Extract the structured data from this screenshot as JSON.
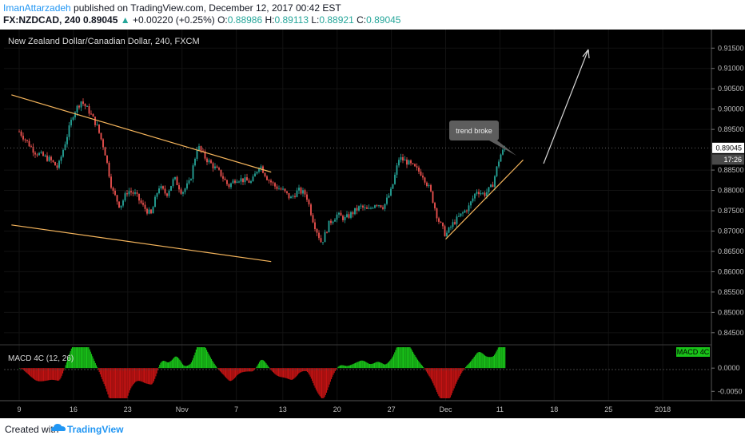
{
  "header": {
    "author": "ImanAttarzadeh",
    "published_text": " published on TradingView.com, December 12, 2017 00:42 EST",
    "symbol": "FX:NZDCAD, 240",
    "last": "0.89045",
    "change": "+0.00220 (+0.25%)",
    "o_label": "O:",
    "o": "0.88986",
    "h_label": "H:",
    "h": "0.89113",
    "l_label": "L:",
    "l": "0.88921",
    "c_label": "C:",
    "c": "0.89045"
  },
  "chart_title": "New Zealand Dollar/Canadian Dollar, 240, FXCM",
  "annotation": "trend broke",
  "footer": {
    "created_with": "Created with",
    "brand": "TradingView"
  },
  "colors": {
    "up": "#26a69a",
    "down": "#ef5350",
    "trendline": "#f5b55c",
    "bg": "#000000",
    "macd_up": "#19c319",
    "macd_down": "#c41313"
  },
  "chart_data": {
    "type": "candlestick",
    "ylim": [
      0.843,
      0.918
    ],
    "price_ticks": [
      "0.91500",
      "0.91000",
      "0.90500",
      "0.90000",
      "0.89500",
      "0.88500",
      "0.88000",
      "0.87500",
      "0.87000",
      "0.86500",
      "0.86000",
      "0.85500",
      "0.85000",
      "0.84500"
    ],
    "current_price": "0.89045",
    "countdown": "17:26",
    "x_ticks": [
      "9",
      "16",
      "23",
      "Nov",
      "7",
      "13",
      "20",
      "27",
      "Dec",
      "11",
      "18",
      "25",
      "2018"
    ],
    "price_path": [
      {
        "x": 9,
        "y": 0.8945
      },
      {
        "x": 11,
        "y": 0.8895
      },
      {
        "x": 13,
        "y": 0.8875
      },
      {
        "x": 14,
        "y": 0.8855
      },
      {
        "x": 16,
        "y": 0.899
      },
      {
        "x": 17,
        "y": 0.902
      },
      {
        "x": 18,
        "y": 0.8995
      },
      {
        "x": 19,
        "y": 0.896
      },
      {
        "x": 20,
        "y": 0.89
      },
      {
        "x": 21,
        "y": 0.88
      },
      {
        "x": 22,
        "y": 0.876
      },
      {
        "x": 23,
        "y": 0.88
      },
      {
        "x": 24,
        "y": 0.879
      },
      {
        "x": 25,
        "y": 0.876
      },
      {
        "x": 26,
        "y": 0.874
      },
      {
        "x": 27,
        "y": 0.881
      },
      {
        "x": 28,
        "y": 0.879
      },
      {
        "x": 29,
        "y": 0.883
      },
      {
        "x": 30,
        "y": 0.8795
      },
      {
        "x": 31,
        "y": 0.882
      },
      {
        "x": 32,
        "y": 0.891
      },
      {
        "x": 33,
        "y": 0.888
      },
      {
        "x": 34,
        "y": 0.886
      },
      {
        "x": 35,
        "y": 0.884
      },
      {
        "x": 36,
        "y": 0.881
      },
      {
        "x": 37,
        "y": 0.883
      },
      {
        "x": 38,
        "y": 0.8825
      },
      {
        "x": 39,
        "y": 0.882
      },
      {
        "x": 40,
        "y": 0.8865
      },
      {
        "x": 41,
        "y": 0.883
      },
      {
        "x": 42,
        "y": 0.881
      },
      {
        "x": 43,
        "y": 0.88
      },
      {
        "x": 44,
        "y": 0.878
      },
      {
        "x": 45,
        "y": 0.88
      },
      {
        "x": 46,
        "y": 0.879
      },
      {
        "x": 47,
        "y": 0.872
      },
      {
        "x": 48,
        "y": 0.867
      },
      {
        "x": 49,
        "y": 0.872
      },
      {
        "x": 50,
        "y": 0.874
      },
      {
        "x": 51,
        "y": 0.873
      },
      {
        "x": 52,
        "y": 0.8745
      },
      {
        "x": 53,
        "y": 0.876
      },
      {
        "x": 54,
        "y": 0.875
      },
      {
        "x": 55,
        "y": 0.877
      },
      {
        "x": 56,
        "y": 0.876
      },
      {
        "x": 57,
        "y": 0.88
      },
      {
        "x": 58,
        "y": 0.888
      },
      {
        "x": 59,
        "y": 0.887
      },
      {
        "x": 60,
        "y": 0.8855
      },
      {
        "x": 61,
        "y": 0.884
      },
      {
        "x": 62,
        "y": 0.88
      },
      {
        "x": 63,
        "y": 0.873
      },
      {
        "x": 64,
        "y": 0.869
      },
      {
        "x": 65,
        "y": 0.872
      },
      {
        "x": 66,
        "y": 0.874
      },
      {
        "x": 67,
        "y": 0.876
      },
      {
        "x": 68,
        "y": 0.88
      },
      {
        "x": 69,
        "y": 0.879
      },
      {
        "x": 70,
        "y": 0.881
      },
      {
        "x": 71,
        "y": 0.8885
      },
      {
        "x": 71.7,
        "y": 0.8905
      }
    ],
    "trendlines": [
      {
        "name": "upper-channel",
        "x1": 8,
        "y1": 0.9035,
        "x2": 41.5,
        "y2": 0.8845
      },
      {
        "name": "lower-channel",
        "x1": 8,
        "y1": 0.8715,
        "x2": 41.5,
        "y2": 0.8625
      },
      {
        "name": "rising-support",
        "x1": 64,
        "y1": 0.868,
        "x2": 74,
        "y2": 0.8875
      }
    ],
    "macd": {
      "label": "MACD 4C (12, 26)",
      "badge": "MACD 4C",
      "ylim": [
        -0.0065,
        0.0045
      ],
      "ticks": [
        "0.0000",
        "-0.0050"
      ]
    }
  }
}
